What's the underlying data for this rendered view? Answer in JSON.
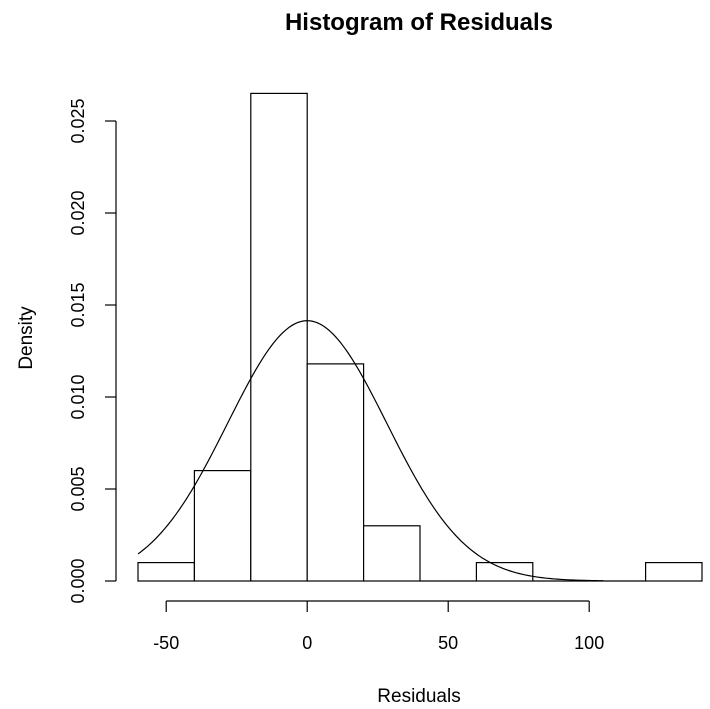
{
  "chart_data": {
    "type": "bar",
    "title": "Histogram of Residuals",
    "xlabel": "Residuals",
    "ylabel": "Density",
    "xlim": [
      -60,
      140
    ],
    "ylim": [
      0,
      0.025
    ],
    "x_ticks": [
      {
        "value": -50,
        "label": "-50"
      },
      {
        "value": 0,
        "label": "0"
      },
      {
        "value": 50,
        "label": "50"
      },
      {
        "value": 100,
        "label": "100"
      }
    ],
    "y_ticks": [
      {
        "value": 0.0,
        "label": "0.000"
      },
      {
        "value": 0.005,
        "label": "0.005"
      },
      {
        "value": 0.01,
        "label": "0.010"
      },
      {
        "value": 0.015,
        "label": "0.015"
      },
      {
        "value": 0.02,
        "label": "0.020"
      },
      {
        "value": 0.025,
        "label": "0.025"
      }
    ],
    "bins": [
      {
        "start": -60,
        "end": -40,
        "density": 0.001
      },
      {
        "start": -40,
        "end": -20,
        "density": 0.006
      },
      {
        "start": -20,
        "end": 0,
        "density": 0.0265
      },
      {
        "start": 0,
        "end": 20,
        "density": 0.0118
      },
      {
        "start": 20,
        "end": 40,
        "density": 0.003
      },
      {
        "start": 40,
        "end": 60,
        "density": 0.0
      },
      {
        "start": 60,
        "end": 80,
        "density": 0.001
      },
      {
        "start": 80,
        "end": 100,
        "density": 0.0
      },
      {
        "start": 100,
        "end": 120,
        "density": 0.0
      },
      {
        "start": 120,
        "end": 140,
        "density": 0.001
      }
    ],
    "density_curve": {
      "type": "normal",
      "mean": 0,
      "sd": 28.2,
      "x_range": [
        -60,
        105
      ]
    },
    "grid": false,
    "legend": "none"
  }
}
